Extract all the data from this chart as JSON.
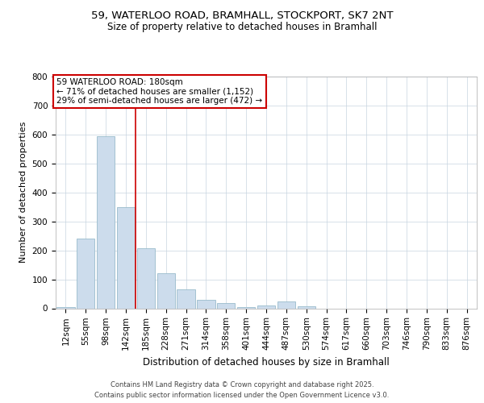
{
  "title_line1": "59, WATERLOO ROAD, BRAMHALL, STOCKPORT, SK7 2NT",
  "title_line2": "Size of property relative to detached houses in Bramhall",
  "xlabel": "Distribution of detached houses by size in Bramhall",
  "ylabel": "Number of detached properties",
  "footer_line1": "Contains HM Land Registry data © Crown copyright and database right 2025.",
  "footer_line2": "Contains public sector information licensed under the Open Government Licence v3.0.",
  "annotation_line1": "59 WATERLOO ROAD: 180sqm",
  "annotation_line2": "← 71% of detached houses are smaller (1,152)",
  "annotation_line3": "29% of semi-detached houses are larger (472) →",
  "categories": [
    "12sqm",
    "55sqm",
    "98sqm",
    "142sqm",
    "185sqm",
    "228sqm",
    "271sqm",
    "314sqm",
    "358sqm",
    "401sqm",
    "444sqm",
    "487sqm",
    "530sqm",
    "574sqm",
    "617sqm",
    "660sqm",
    "703sqm",
    "746sqm",
    "790sqm",
    "833sqm",
    "876sqm"
  ],
  "values": [
    5,
    240,
    595,
    350,
    207,
    120,
    65,
    28,
    18,
    5,
    10,
    25,
    8,
    0,
    0,
    0,
    0,
    0,
    0,
    0,
    0
  ],
  "bar_color": "#ccdcec",
  "bar_edge_color": "#99bbcc",
  "vline_x_index": 3.5,
  "vline_color": "#cc0000",
  "annotation_box_color": "#cc0000",
  "background_color": "#ffffff",
  "grid_color": "#c8d4e0",
  "ylim": [
    0,
    800
  ],
  "yticks": [
    0,
    100,
    200,
    300,
    400,
    500,
    600,
    700,
    800
  ],
  "title_fontsize": 9.5,
  "subtitle_fontsize": 8.5,
  "ylabel_fontsize": 8,
  "xlabel_fontsize": 8.5,
  "tick_fontsize": 7.5,
  "footer_fontsize": 6,
  "annotation_fontsize": 7.5
}
